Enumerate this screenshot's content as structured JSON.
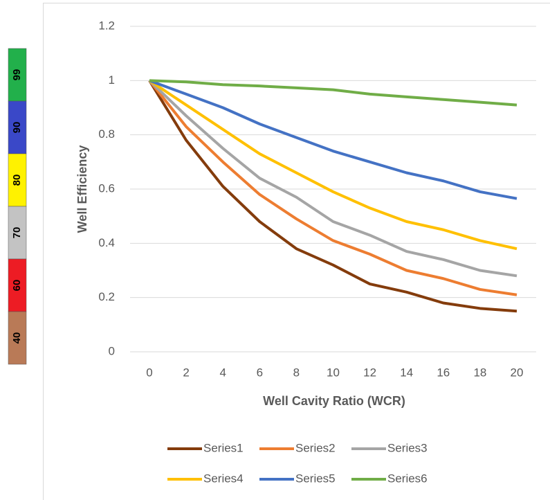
{
  "chart_data": {
    "type": "line",
    "x_label": "Well Cavity Ratio (WCR)",
    "y_label": "Well Efficiency",
    "x": [
      0,
      2,
      4,
      6,
      8,
      10,
      12,
      14,
      16,
      18,
      20
    ],
    "xlim": [
      -1,
      21
    ],
    "xticks": [
      0,
      2,
      4,
      6,
      8,
      10,
      12,
      14,
      16,
      18,
      20
    ],
    "ylim": [
      0,
      1.2
    ],
    "yticks": [
      0,
      0.2,
      0.4,
      0.6,
      0.8,
      1,
      1.2
    ],
    "grid": true,
    "legend": "bottom",
    "series": [
      {
        "name": "Series1",
        "color": "#843c0c",
        "values": [
          1,
          0.78,
          0.61,
          0.48,
          0.38,
          0.32,
          0.25,
          0.22,
          0.18,
          0.16,
          0.15
        ]
      },
      {
        "name": "Series2",
        "color": "#ed7d31",
        "values": [
          1,
          0.83,
          0.7,
          0.58,
          0.49,
          0.41,
          0.36,
          0.3,
          0.27,
          0.23,
          0.21
        ]
      },
      {
        "name": "Series3",
        "color": "#a5a5a5",
        "values": [
          1,
          0.87,
          0.75,
          0.64,
          0.57,
          0.48,
          0.43,
          0.37,
          0.34,
          0.3,
          0.28
        ]
      },
      {
        "name": "Series4",
        "color": "#ffc000",
        "values": [
          1,
          0.91,
          0.82,
          0.73,
          0.66,
          0.59,
          0.53,
          0.48,
          0.45,
          0.41,
          0.38
        ]
      },
      {
        "name": "Series5",
        "color": "#4472c4",
        "values": [
          1,
          0.95,
          0.9,
          0.84,
          0.79,
          0.74,
          0.7,
          0.66,
          0.63,
          0.59,
          0.565
        ]
      },
      {
        "name": "Series6",
        "color": "#70ad47",
        "values": [
          1,
          0.995,
          0.985,
          0.98,
          0.973,
          0.966,
          0.95,
          0.94,
          0.93,
          0.92,
          0.91
        ]
      }
    ]
  },
  "side_legend": [
    {
      "label": "99",
      "color": "#22b04b"
    },
    {
      "label": "90",
      "color": "#3a48c8"
    },
    {
      "label": "80",
      "color": "#fff200"
    },
    {
      "label": "70",
      "color": "#c3c3c3"
    },
    {
      "label": "60",
      "color": "#ed1c24"
    },
    {
      "label": "40",
      "color": "#b97a57"
    }
  ]
}
